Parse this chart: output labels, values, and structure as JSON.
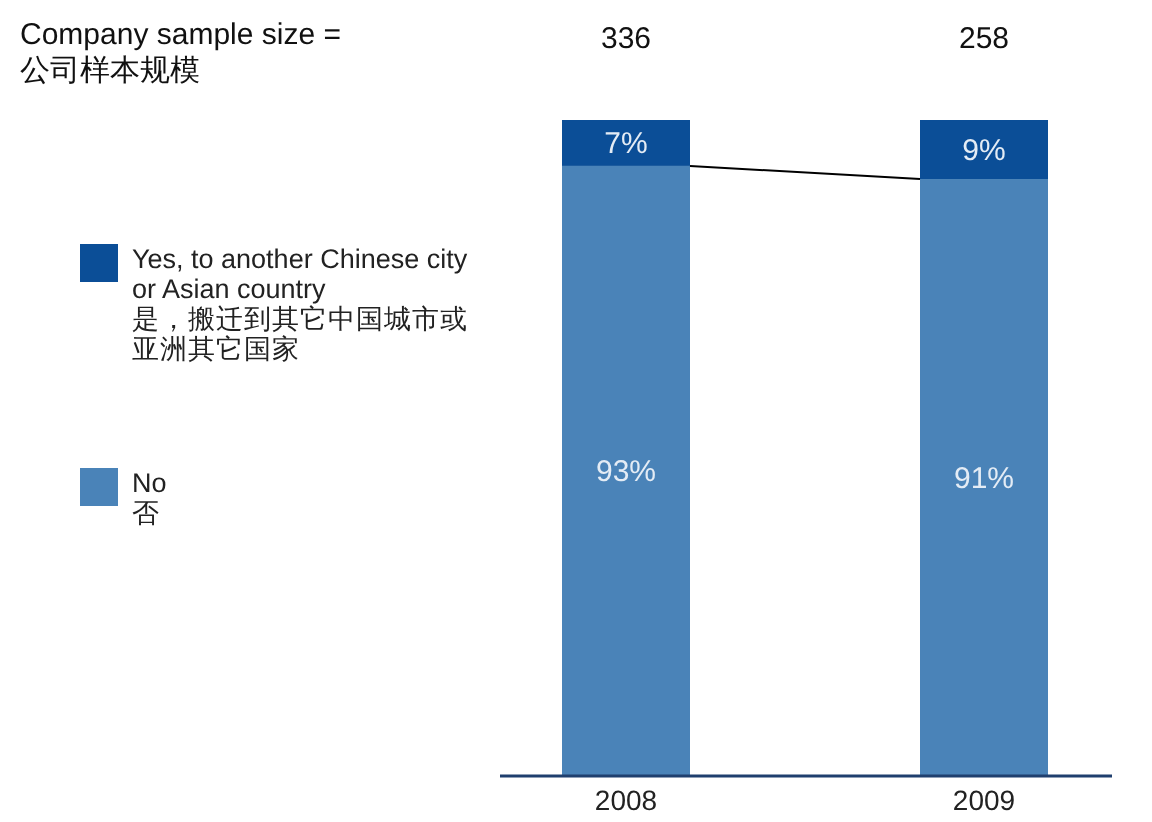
{
  "chart_data": {
    "type": "bar",
    "stacked": true,
    "categories": [
      "2008",
      "2009"
    ],
    "series": [
      {
        "name": "No\n否",
        "color": "#4a83b8",
        "values": [
          93,
          91
        ],
        "value_labels": [
          "93%",
          "91%"
        ]
      },
      {
        "name": "Yes, to another Chinese city\nor Asian country\n是，搬迁到其它中国城市或亚洲其它国家",
        "color": "#0b4e97",
        "values": [
          7,
          9
        ],
        "value_labels": [
          "7%",
          "9%"
        ]
      }
    ],
    "legend": "left",
    "annotations": [
      "Company sample size =\n公司样本规模",
      "336",
      "258"
    ]
  }
}
